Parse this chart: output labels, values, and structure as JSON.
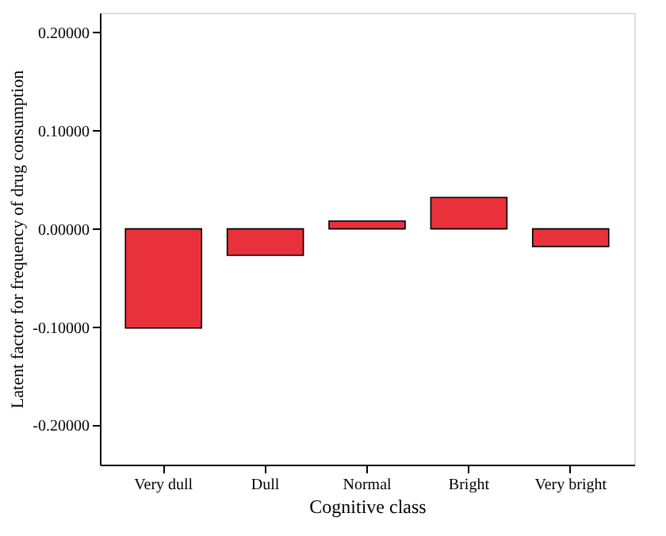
{
  "chart_data": {
    "type": "bar",
    "xlabel": "Cognitive class",
    "ylabel": "Latent factor for frequency of drug consumption",
    "categories": [
      "Very dull",
      "Dull",
      "Normal",
      "Bright",
      "Very bright"
    ],
    "values": [
      -0.101,
      -0.027,
      0.008,
      0.032,
      -0.018
    ],
    "color": "#e8313b",
    "ylim": [
      -0.24,
      0.22
    ],
    "yticks": [
      {
        "value": -0.2,
        "label": "-0.20000"
      },
      {
        "value": -0.1,
        "label": "-0.10000"
      },
      {
        "value": 0,
        "label": "0.00000"
      },
      {
        "value": 0.1,
        "label": "0.10000"
      },
      {
        "value": 0.2,
        "label": "0.20000"
      }
    ],
    "grid": false
  }
}
